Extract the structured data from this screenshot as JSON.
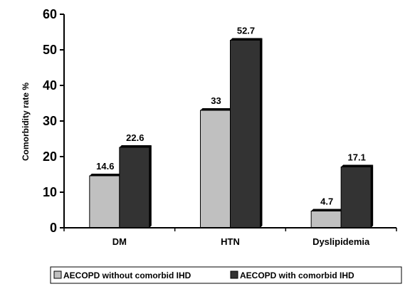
{
  "chart_data": {
    "type": "bar",
    "categories": [
      "DM",
      "HTN",
      "Dyslipidemia"
    ],
    "series": [
      {
        "name": "AECOPD without comorbid IHD",
        "values": [
          14.6,
          33,
          4.7
        ],
        "labels": [
          "14.6",
          "33",
          "4.7"
        ],
        "color": "#c0c0c0"
      },
      {
        "name": "AECOPD with comorbid IHD",
        "values": [
          22.6,
          52.7,
          17.1
        ],
        "labels": [
          "22.6",
          "52.7",
          "17.1"
        ],
        "color": "#333333"
      }
    ],
    "ylabel": "Comorbidity rate %",
    "xlabel": "",
    "ylim": [
      0,
      60
    ],
    "yticks": [
      0,
      10,
      20,
      30,
      40,
      50,
      60
    ],
    "grid": false,
    "legend_position": "bottom"
  }
}
